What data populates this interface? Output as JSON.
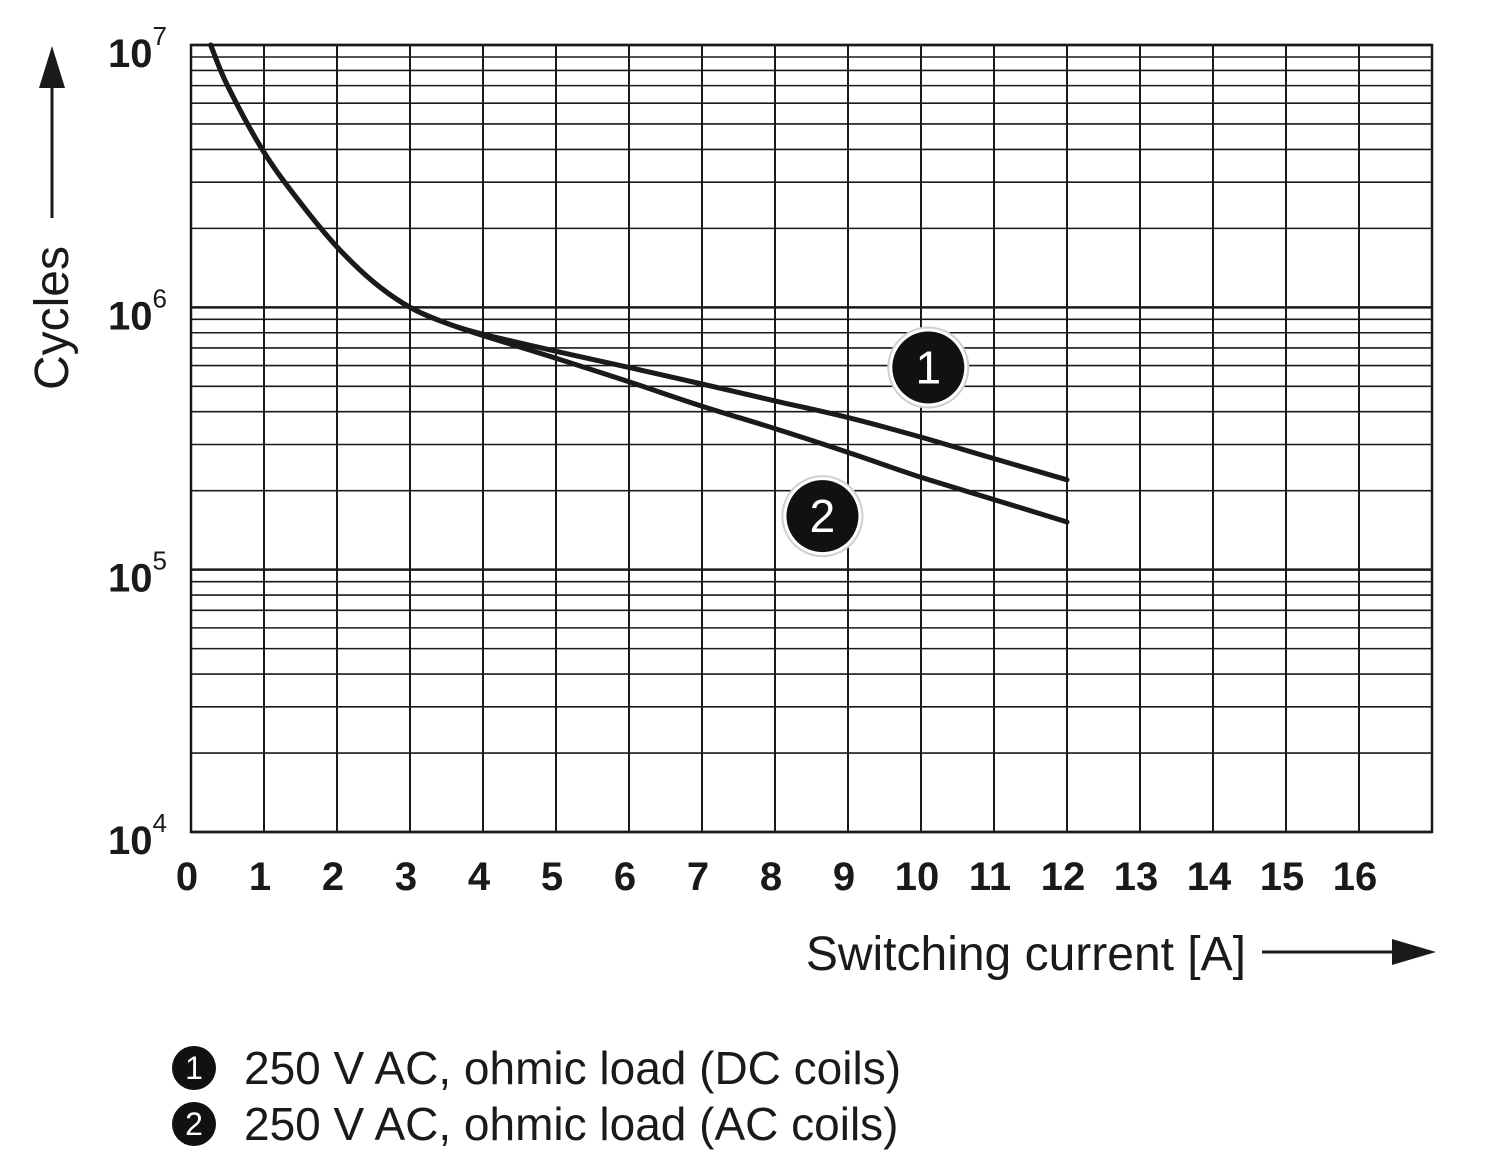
{
  "chart_data": {
    "type": "line",
    "xlabel": "Switching current [A]",
    "ylabel": "Cycles",
    "x_scale": "linear",
    "y_scale": "log",
    "xlim": [
      0,
      17
    ],
    "ylim": [
      10000,
      10000000
    ],
    "x_ticks": [
      "0",
      "1",
      "2",
      "3",
      "4",
      "5",
      "6",
      "7",
      "8",
      "9",
      "10",
      "11",
      "12",
      "13",
      "14",
      "15",
      "16"
    ],
    "y_ticks": [
      {
        "base": "10",
        "exp": "4",
        "value": 10000
      },
      {
        "base": "10",
        "exp": "5",
        "value": 100000
      },
      {
        "base": "10",
        "exp": "6",
        "value": 1000000
      },
      {
        "base": "10",
        "exp": "7",
        "value": 10000000
      }
    ],
    "grid": true,
    "series": [
      {
        "marker": "1",
        "x": [
          0.27,
          0.5,
          1,
          1.5,
          2,
          2.5,
          3,
          3.5,
          4,
          5,
          6,
          7,
          8,
          9,
          10,
          11,
          12
        ],
        "y": [
          10000000,
          7000000,
          3900000,
          2500000,
          1700000,
          1250000,
          1000000,
          870000,
          790000,
          680000,
          590000,
          510000,
          440000,
          380000,
          320000,
          265000,
          220000
        ]
      },
      {
        "marker": "2",
        "x": [
          0.27,
          0.5,
          1,
          1.5,
          2,
          2.5,
          3,
          3.5,
          4,
          5,
          6,
          7,
          8,
          9,
          10,
          11,
          12
        ],
        "y": [
          10000000,
          7000000,
          3900000,
          2500000,
          1700000,
          1250000,
          1000000,
          870000,
          780000,
          640000,
          520000,
          420000,
          345000,
          280000,
          225000,
          185000,
          152000
        ]
      }
    ],
    "series_markers": [
      {
        "label": "1",
        "x": 10.1,
        "y": 590000
      },
      {
        "label": "2",
        "x": 8.65,
        "y": 160000
      }
    ],
    "legend": {
      "placement": "bottom-left",
      "entries": [
        {
          "badge": "1",
          "text": "250 V AC, ohmic load (DC coils)"
        },
        {
          "badge": "2",
          "text": "250 V AC, ohmic load (AC coils)"
        }
      ]
    }
  }
}
